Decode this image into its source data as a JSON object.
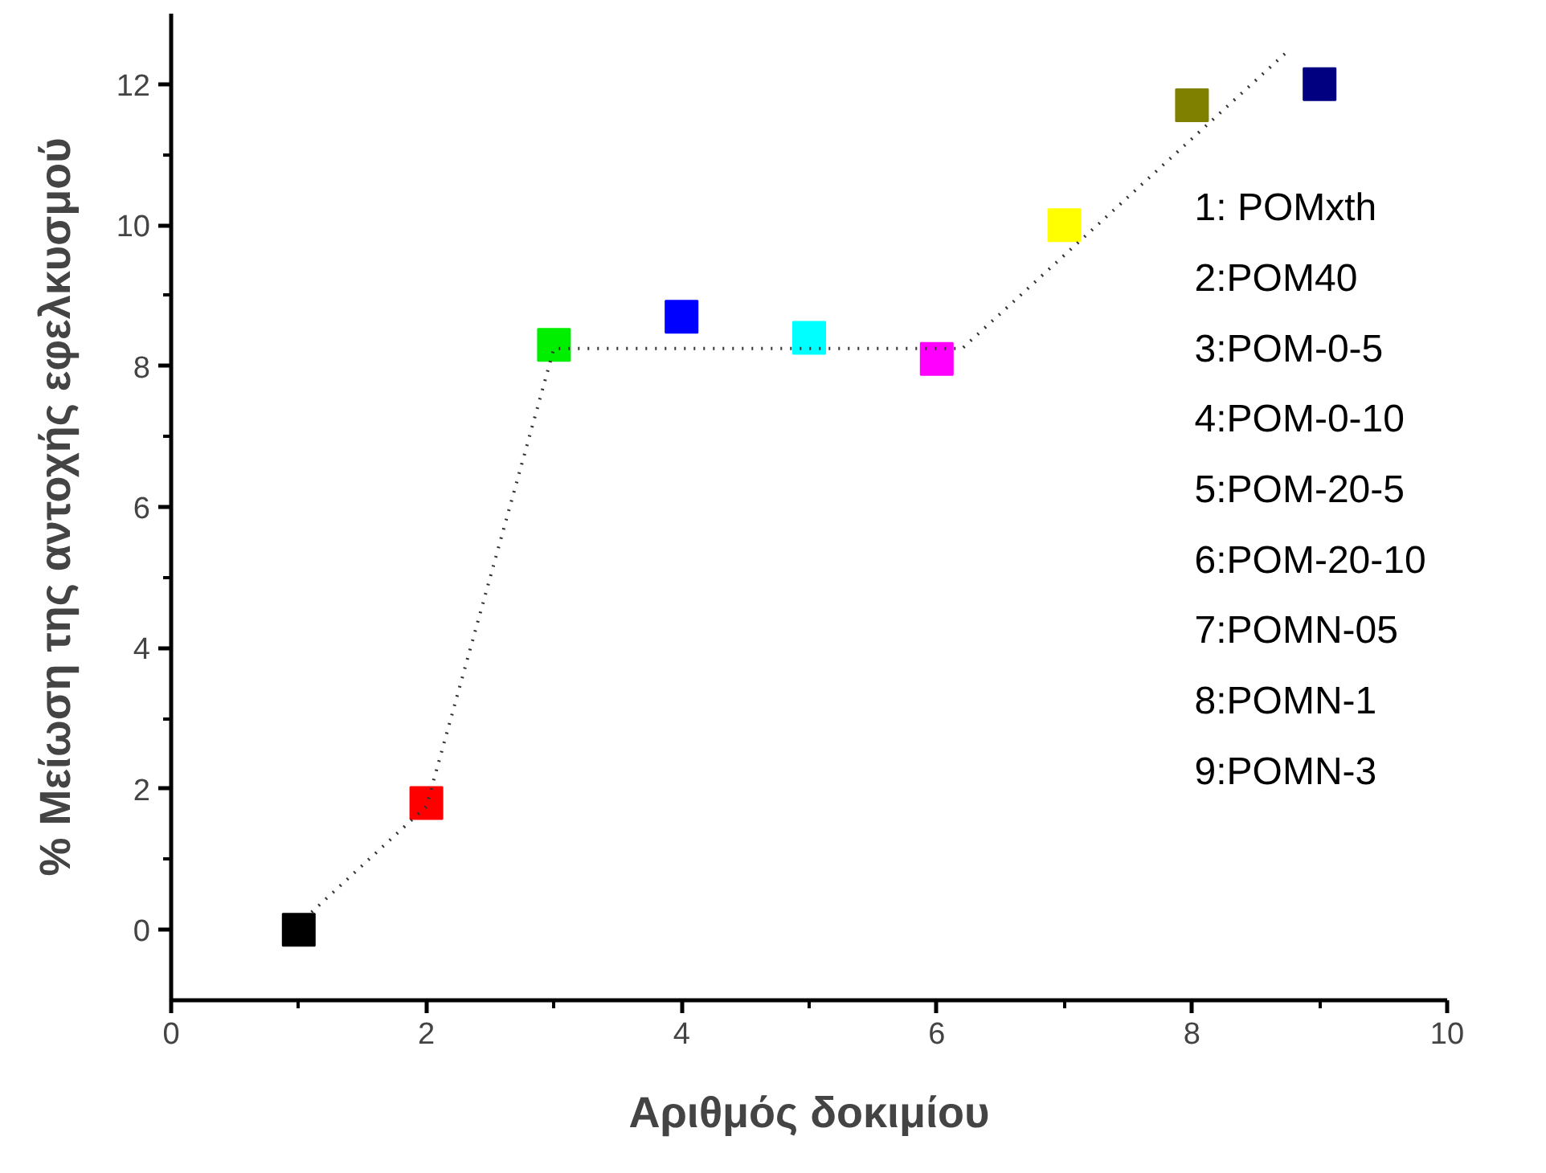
{
  "chart_data": {
    "type": "scatter",
    "xlabel": "Αριθμός δοκιμίου",
    "ylabel": "% Μείωση της αντοχής εφελκυσμού",
    "xlim": [
      0,
      10
    ],
    "xticks": [
      0,
      2,
      4,
      6,
      8,
      10
    ],
    "ylim": [
      -1,
      13
    ],
    "yticks": [
      0,
      2,
      4,
      6,
      8,
      10,
      12
    ],
    "grid": false,
    "series": [
      {
        "marker": "square",
        "x": [
          1,
          2,
          3,
          4,
          5,
          6,
          7,
          8,
          9
        ],
        "values": [
          0,
          1.8,
          8.3,
          8.7,
          8.4,
          8.1,
          10.0,
          11.7,
          12.0
        ],
        "colors": [
          "#000000",
          "#ff0000",
          "#00ee00",
          "#0000ff",
          "#00ffff",
          "#ff00ff",
          "#ffff00",
          "#808000",
          "#000080"
        ]
      },
      {
        "type": "line",
        "line_style": "dotted",
        "color": "#333333",
        "x": [
          1.1,
          2.0,
          3.0,
          6.2,
          8.77
        ],
        "values": [
          0.25,
          1.75,
          8.25,
          8.25,
          12.5
        ]
      }
    ],
    "annotations": [
      "1: POMxth",
      "2:POM40",
      "3:POM-0-5",
      "4:POM-0-10",
      "5:POM-20-5",
      "6:POM-20-10",
      "7:POMN-05",
      "8:POMN-1",
      "9:POMN-3"
    ]
  }
}
